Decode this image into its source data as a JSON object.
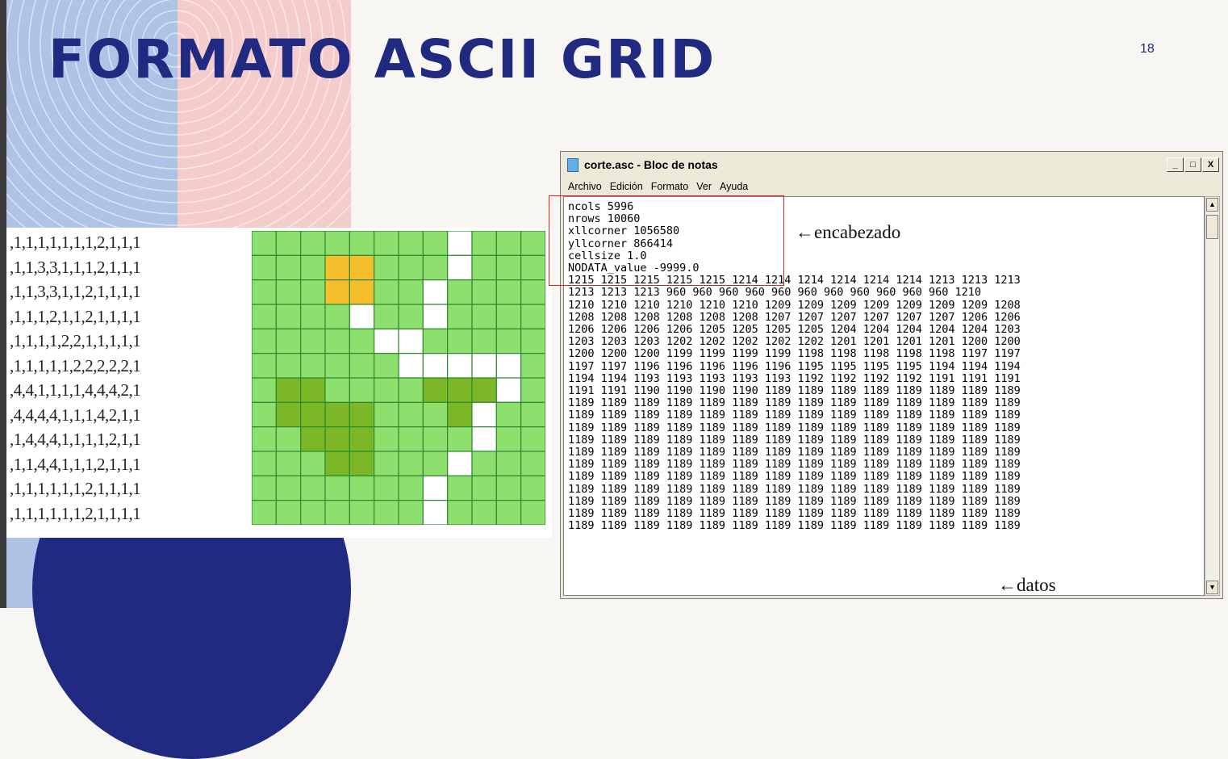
{
  "slide": {
    "title": "FORMATO ASCII GRID",
    "page_number": "18",
    "colors": {
      "title": "#1f2a80",
      "blue_band": "#aec3e6",
      "pink_band": "#f5cccc",
      "navy_circle": "#1f2a80"
    }
  },
  "number_grid": {
    "rows": [
      ",1,1,1,1,1,1,1,2,1,1,1",
      ",1,1,3,3,1,1,1,2,1,1,1",
      ",1,1,3,3,1,1,2,1,1,1,1",
      ",1,1,1,2,1,1,2,1,1,1,1",
      ",1,1,1,1,2,2,1,1,1,1,1",
      ",1,1,1,1,1,2,2,2,2,2,1",
      ",4,4,1,1,1,1,4,4,4,2,1",
      ",4,4,4,4,1,1,1,4,2,1,1",
      ",1,4,4,4,1,1,1,1,2,1,1",
      ",1,1,4,4,1,1,1,2,1,1,1",
      ",1,1,1,1,1,1,2,1,1,1,1",
      ",1,1,1,1,1,1,2,1,1,1,1"
    ]
  },
  "color_grid": {
    "value_colors": {
      "1": "#8ee06e",
      "2": "#ffffff",
      "3": "#f6be2c",
      "4": "#7cb727"
    },
    "cells": [
      [
        1,
        1,
        1,
        1,
        1,
        1,
        1,
        1,
        2,
        1,
        1,
        1
      ],
      [
        1,
        1,
        1,
        3,
        3,
        1,
        1,
        1,
        2,
        1,
        1,
        1
      ],
      [
        1,
        1,
        1,
        3,
        3,
        1,
        1,
        2,
        1,
        1,
        1,
        1
      ],
      [
        1,
        1,
        1,
        1,
        2,
        1,
        1,
        2,
        1,
        1,
        1,
        1
      ],
      [
        1,
        1,
        1,
        1,
        1,
        2,
        2,
        1,
        1,
        1,
        1,
        1
      ],
      [
        1,
        1,
        1,
        1,
        1,
        1,
        2,
        2,
        2,
        2,
        2,
        1
      ],
      [
        1,
        4,
        4,
        1,
        1,
        1,
        1,
        4,
        4,
        4,
        2,
        1
      ],
      [
        1,
        4,
        4,
        4,
        4,
        1,
        1,
        1,
        4,
        2,
        1,
        1
      ],
      [
        1,
        1,
        4,
        4,
        4,
        1,
        1,
        1,
        1,
        2,
        1,
        1
      ],
      [
        1,
        1,
        1,
        4,
        4,
        1,
        1,
        1,
        2,
        1,
        1,
        1
      ],
      [
        1,
        1,
        1,
        1,
        1,
        1,
        1,
        2,
        1,
        1,
        1,
        1
      ],
      [
        1,
        1,
        1,
        1,
        1,
        1,
        1,
        2,
        1,
        1,
        1,
        1
      ]
    ]
  },
  "notepad": {
    "title": "corte.asc - Bloc de notas",
    "buttons": {
      "minimize": "_",
      "maximize": "□",
      "close": "X"
    },
    "menu": [
      "Archivo",
      "Edición",
      "Formato",
      "Ver",
      "Ayuda"
    ],
    "header_lines": [
      "ncols 5996",
      "nrows 10060",
      "xllcorner 1056580",
      "yllcorner 866414",
      "cellsize 1.0",
      "NODATA_value -9999.0"
    ],
    "data_lines": [
      "1215 1215 1215 1215 1215 1214 1214 1214 1214 1214 1214 1213 1213 1213",
      "1213 1213 1213 960 960 960 960 960 960 960 960 960 960 960 1210",
      "1210 1210 1210 1210 1210 1210 1209 1209 1209 1209 1209 1209 1209 1208",
      "1208 1208 1208 1208 1208 1208 1207 1207 1207 1207 1207 1207 1206 1206",
      "1206 1206 1206 1206 1205 1205 1205 1205 1204 1204 1204 1204 1204 1203",
      "1203 1203 1203 1202 1202 1202 1202 1202 1201 1201 1201 1201 1200 1200",
      "1200 1200 1200 1199 1199 1199 1199 1198 1198 1198 1198 1198 1197 1197",
      "1197 1197 1196 1196 1196 1196 1196 1195 1195 1195 1195 1194 1194 1194",
      "1194 1194 1193 1193 1193 1193 1193 1192 1192 1192 1192 1191 1191 1191",
      "1191 1191 1190 1190 1190 1190 1189 1189 1189 1189 1189 1189 1189 1189",
      "1189 1189 1189 1189 1189 1189 1189 1189 1189 1189 1189 1189 1189 1189",
      "1189 1189 1189 1189 1189 1189 1189 1189 1189 1189 1189 1189 1189 1189",
      "1189 1189 1189 1189 1189 1189 1189 1189 1189 1189 1189 1189 1189 1189",
      "1189 1189 1189 1189 1189 1189 1189 1189 1189 1189 1189 1189 1189 1189",
      "1189 1189 1189 1189 1189 1189 1189 1189 1189 1189 1189 1189 1189 1189",
      "1189 1189 1189 1189 1189 1189 1189 1189 1189 1189 1189 1189 1189 1189",
      "1189 1189 1189 1189 1189 1189 1189 1189 1189 1189 1189 1189 1189 1189",
      "1189 1189 1189 1189 1189 1189 1189 1189 1189 1189 1189 1189 1189 1189",
      "1189 1189 1189 1189 1189 1189 1189 1189 1189 1189 1189 1189 1189 1189",
      "1189 1189 1189 1189 1189 1189 1189 1189 1189 1189 1189 1189 1189 1189",
      "1189 1189 1189 1189 1189 1189 1189 1189 1189 1189 1189 1189 1189 1189"
    ]
  },
  "annotations": {
    "encabezado": "←encabezado",
    "datos": "←datos",
    "highlight_color": "#e02020"
  }
}
